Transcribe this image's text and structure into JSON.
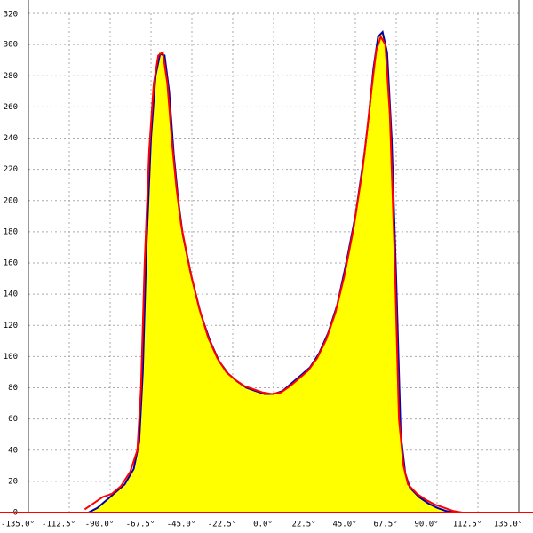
{
  "chart_data": {
    "type": "area-line",
    "fill": "#ffff00",
    "grid": true,
    "xlim": [
      -135,
      135
    ],
    "ylim": [
      0,
      320
    ],
    "xticks": [
      {
        "value": -135,
        "label": "-135.0°"
      },
      {
        "value": -112.5,
        "label": "-112.5°"
      },
      {
        "value": -90,
        "label": "-90.0°"
      },
      {
        "value": -67.5,
        "label": "-67.5°"
      },
      {
        "value": -45,
        "label": "-45.0°"
      },
      {
        "value": -22.5,
        "label": "-22.5°"
      },
      {
        "value": 0,
        "label": "0.0°"
      },
      {
        "value": 22.5,
        "label": "22.5°"
      },
      {
        "value": 45,
        "label": "45.0°"
      },
      {
        "value": 67.5,
        "label": "67.5°"
      },
      {
        "value": 90,
        "label": "90.0°"
      },
      {
        "value": 112.5,
        "label": "112.5°"
      },
      {
        "value": 135,
        "label": "135.0°"
      }
    ],
    "yticks": [
      0,
      20,
      40,
      60,
      80,
      100,
      120,
      140,
      160,
      180,
      200,
      220,
      240,
      260,
      280,
      300,
      320
    ],
    "series": [
      {
        "color": "#0000aa",
        "x": [
          -102,
          -97,
          -92,
          -87,
          -82,
          -77,
          -74,
          -72,
          -70,
          -67.5,
          -65,
          -62.5,
          -60,
          -57.5,
          -55,
          -52.5,
          -50,
          -45,
          -40,
          -35,
          -30,
          -25,
          -20,
          -15,
          -10,
          -5,
          0,
          5,
          10,
          15,
          20,
          25,
          30,
          35,
          40,
          45,
          50,
          52.5,
          55,
          57.5,
          60,
          62.5,
          65,
          67.5,
          70,
          72.5,
          75,
          80,
          85,
          90,
          95,
          100,
          102
        ],
        "values": [
          0,
          3,
          8,
          13,
          18,
          28,
          45,
          90,
          170,
          240,
          280,
          294,
          293,
          270,
          230,
          200,
          178,
          150,
          127,
          110,
          97,
          89,
          84,
          80,
          78,
          76,
          76,
          78,
          83,
          88,
          93,
          102,
          115,
          133,
          160,
          190,
          230,
          255,
          285,
          305,
          308,
          295,
          240,
          150,
          50,
          25,
          16,
          10,
          6,
          3,
          1,
          0,
          0
        ]
      },
      {
        "color": "#ff0000",
        "x": [
          -104,
          -99,
          -94,
          -89,
          -84,
          -79,
          -75,
          -73,
          -71,
          -68.5,
          -66,
          -63.5,
          -61,
          -58.5,
          -56,
          -53.5,
          -51,
          -46,
          -41,
          -36,
          -31,
          -26,
          -21,
          -16,
          -11,
          -6,
          -1,
          4,
          9,
          14,
          19,
          24,
          29,
          34,
          39,
          44,
          49,
          51.5,
          54,
          56.5,
          59,
          61.5,
          64,
          66.5,
          69,
          71.5,
          74,
          79,
          84,
          89,
          94,
          99,
          104
        ],
        "values": [
          2,
          6,
          10,
          12,
          17,
          26,
          40,
          80,
          160,
          232,
          275,
          293,
          295,
          275,
          238,
          208,
          185,
          155,
          131,
          112,
          99,
          90,
          85,
          81,
          79,
          77,
          76,
          77,
          81,
          86,
          91,
          99,
          111,
          128,
          152,
          182,
          220,
          245,
          272,
          296,
          305,
          300,
          255,
          170,
          60,
          30,
          18,
          12,
          8,
          5,
          3,
          1,
          0
        ]
      }
    ]
  }
}
